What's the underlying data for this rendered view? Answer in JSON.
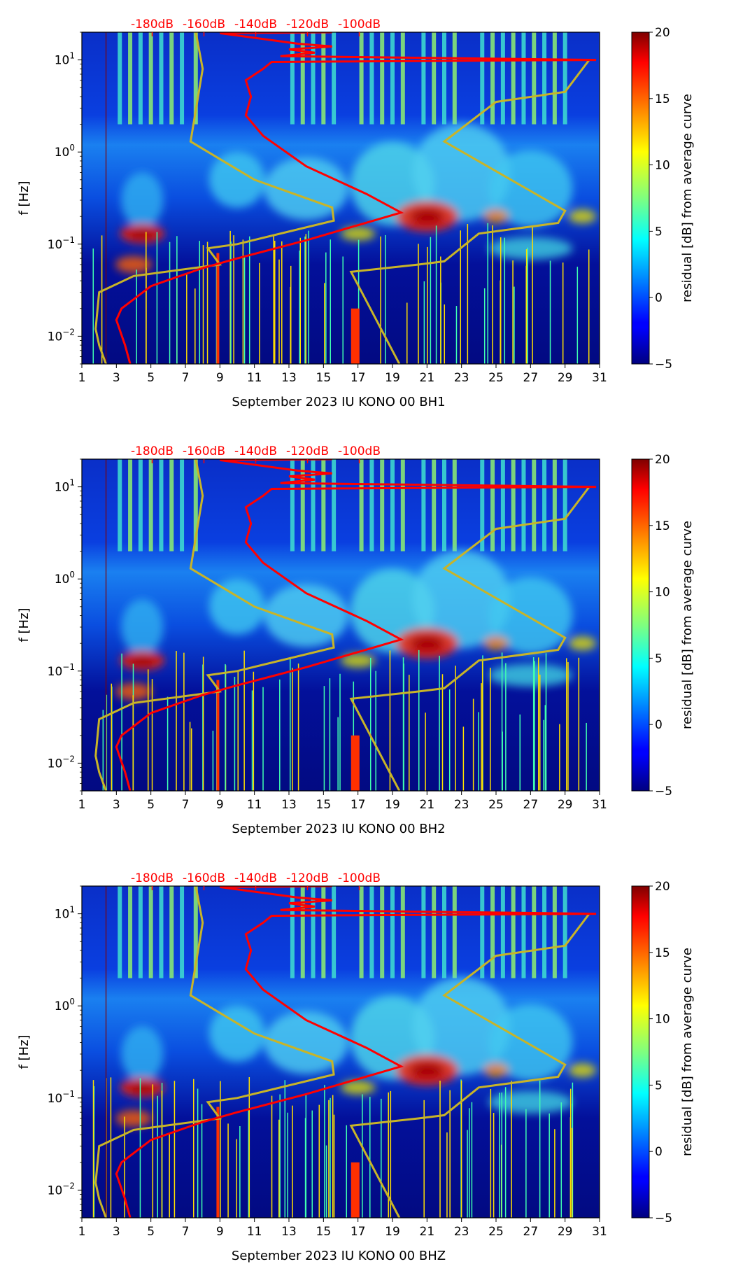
{
  "figure": {
    "colorbar_label": "residual [dB] from average curve",
    "colorbar_ticks": [
      -5,
      0,
      5,
      10,
      15,
      20
    ],
    "colorbar_range": [
      -5,
      20
    ],
    "db_axis_labels": [
      "-180dB",
      "-160dB",
      "-140dB",
      "-120dB",
      "-100dB"
    ],
    "db_axis_color": "#ff0000",
    "curve_colors": {
      "median_noise": "#ff0000",
      "nlnm_nhnm": "#c8b428"
    }
  },
  "chart_data": [
    {
      "type": "heatmap",
      "title": "",
      "xlabel": "September 2023 IU KONO 00 BH1",
      "ylabel": "f [Hz]",
      "x_ticks": [
        "1",
        "3",
        "5",
        "7",
        "9",
        "11",
        "13",
        "15",
        "17",
        "19",
        "21",
        "23",
        "25",
        "27",
        "29",
        "31"
      ],
      "x_range": [
        1,
        31
      ],
      "y_scale": "log",
      "y_range": [
        0.005,
        20
      ],
      "y_ticks": [
        {
          "value": 0.01,
          "base": "10",
          "exp": "−2"
        },
        {
          "value": 0.1,
          "base": "10",
          "exp": "−1"
        },
        {
          "value": 1,
          "base": "10",
          "exp": "0"
        },
        {
          "value": 10,
          "base": "10",
          "exp": "1"
        }
      ]
    },
    {
      "type": "heatmap",
      "title": "",
      "xlabel": "September 2023 IU KONO 00 BH2",
      "ylabel": "f [Hz]",
      "x_ticks": [
        "1",
        "3",
        "5",
        "7",
        "9",
        "11",
        "13",
        "15",
        "17",
        "19",
        "21",
        "23",
        "25",
        "27",
        "29",
        "31"
      ],
      "x_range": [
        1,
        31
      ],
      "y_scale": "log",
      "y_range": [
        0.005,
        20
      ],
      "y_ticks": [
        {
          "value": 0.01,
          "base": "10",
          "exp": "−2"
        },
        {
          "value": 0.1,
          "base": "10",
          "exp": "−1"
        },
        {
          "value": 1,
          "base": "10",
          "exp": "0"
        },
        {
          "value": 10,
          "base": "10",
          "exp": "1"
        }
      ]
    },
    {
      "type": "heatmap",
      "title": "",
      "xlabel": "September 2023 IU KONO 00 BHZ",
      "ylabel": "f [Hz]",
      "x_ticks": [
        "1",
        "3",
        "5",
        "7",
        "9",
        "11",
        "13",
        "15",
        "17",
        "19",
        "21",
        "23",
        "25",
        "27",
        "29",
        "31"
      ],
      "x_range": [
        1,
        31
      ],
      "y_scale": "log",
      "y_range": [
        0.005,
        20
      ],
      "y_ticks": [
        {
          "value": 0.01,
          "base": "10",
          "exp": "−2"
        },
        {
          "value": 0.1,
          "base": "10",
          "exp": "−1"
        },
        {
          "value": 1,
          "base": "10",
          "exp": "0"
        },
        {
          "value": 10,
          "base": "10",
          "exp": "1"
        }
      ]
    }
  ]
}
